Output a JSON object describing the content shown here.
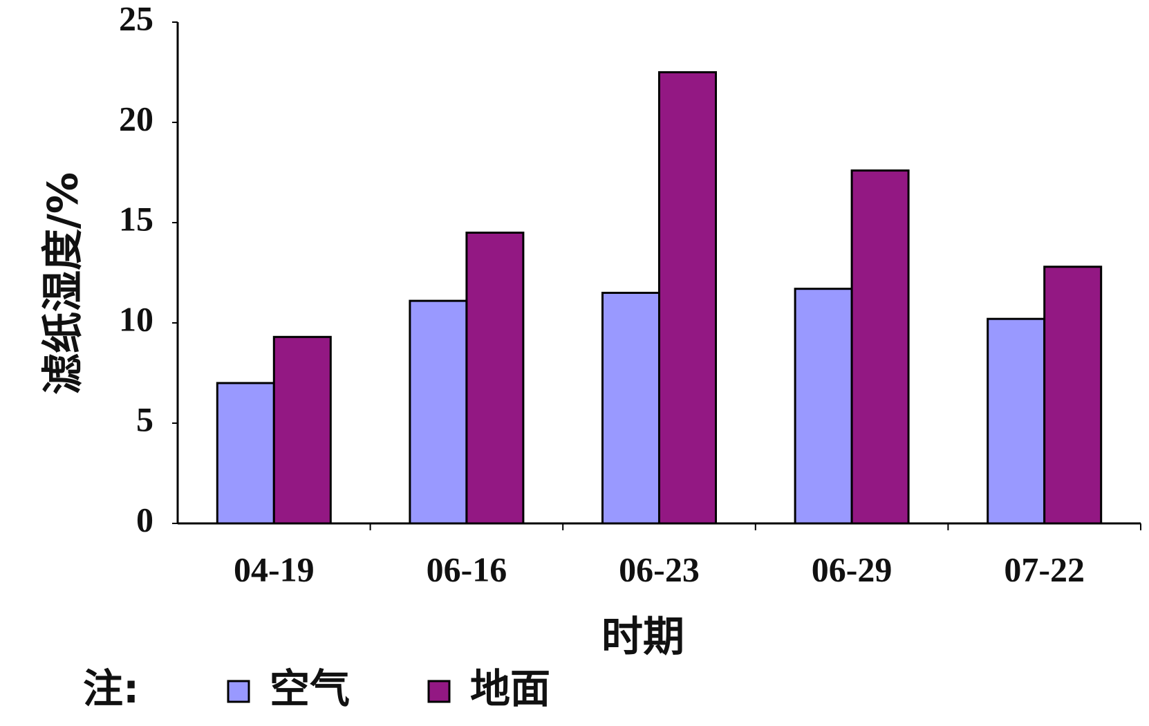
{
  "chart_data": {
    "type": "bar",
    "y_label": "滤纸湿度/%",
    "x_label": "时期",
    "legend_title": "注:",
    "categories": [
      "04-19",
      "06-16",
      "06-23",
      "06-29",
      "07-22"
    ],
    "series": [
      {
        "name": "空气",
        "color": "#9999ff",
        "values": [
          7.0,
          11.1,
          11.5,
          11.7,
          10.2
        ]
      },
      {
        "name": "地面",
        "color": "#931883",
        "values": [
          9.3,
          14.5,
          22.5,
          17.6,
          12.8
        ]
      }
    ],
    "ylim": [
      0,
      25
    ],
    "yticks": [
      0,
      5,
      10,
      15,
      20,
      25
    ]
  }
}
